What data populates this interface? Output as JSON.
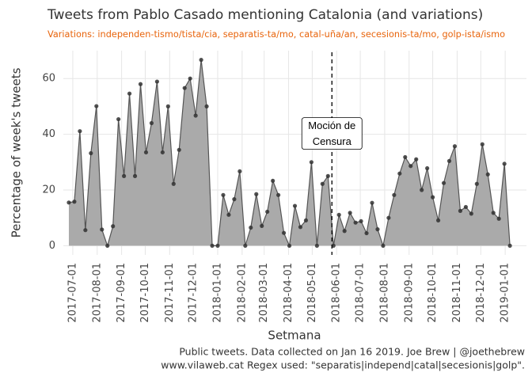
{
  "chart_data": {
    "type": "area",
    "title": "Tweets from Pablo Casado mentioning Catalonia (and variations)",
    "subtitle": "Variations: independen-tismo/tista/cia, separatis-ta/mo, catal-uña/an, secesionis-ta/mo, golp-ista/ismo",
    "x_label": "Setmana",
    "y_label": "Percentage of week's tweets",
    "caption": [
      "Public tweets. Data collected on Jan 16 2019. Joe Brew | @joethebrew",
      "www.vilaweb.cat Regex used: \"separatis|independ|catal|secesionis|golp\"."
    ],
    "x": [
      "2017-06-26",
      "2017-07-03",
      "2017-07-10",
      "2017-07-17",
      "2017-07-24",
      "2017-07-31",
      "2017-08-07",
      "2017-08-14",
      "2017-08-21",
      "2017-08-28",
      "2017-09-04",
      "2017-09-11",
      "2017-09-18",
      "2017-09-25",
      "2017-10-02",
      "2017-10-09",
      "2017-10-16",
      "2017-10-23",
      "2017-10-30",
      "2017-11-06",
      "2017-11-13",
      "2017-11-20",
      "2017-11-27",
      "2017-12-04",
      "2017-12-11",
      "2017-12-18",
      "2017-12-25",
      "2018-01-01",
      "2018-01-08",
      "2018-01-15",
      "2018-01-22",
      "2018-01-29",
      "2018-02-05",
      "2018-02-12",
      "2018-02-19",
      "2018-02-26",
      "2018-03-05",
      "2018-03-12",
      "2018-03-19",
      "2018-03-26",
      "2018-04-02",
      "2018-04-09",
      "2018-04-16",
      "2018-04-23",
      "2018-04-30",
      "2018-05-07",
      "2018-05-14",
      "2018-05-21",
      "2018-05-28",
      "2018-06-04",
      "2018-06-11",
      "2018-06-18",
      "2018-06-25",
      "2018-07-02",
      "2018-07-09",
      "2018-07-16",
      "2018-07-23",
      "2018-07-30",
      "2018-08-06",
      "2018-08-13",
      "2018-08-20",
      "2018-08-27",
      "2018-09-03",
      "2018-09-10",
      "2018-09-17",
      "2018-09-24",
      "2018-10-01",
      "2018-10-08",
      "2018-10-15",
      "2018-10-22",
      "2018-10-29",
      "2018-11-05",
      "2018-11-12",
      "2018-11-19",
      "2018-11-26",
      "2018-12-03",
      "2018-12-10",
      "2018-12-17",
      "2018-12-24",
      "2018-12-31",
      "2019-01-07"
    ],
    "values": [
      15.5,
      15.8,
      41.1,
      5.6,
      33.2,
      50.1,
      5.8,
      0,
      7.0,
      45.4,
      25.0,
      54.6,
      25.0,
      58.0,
      33.5,
      44.0,
      58.9,
      33.5,
      50.0,
      22.2,
      34.4,
      56.6,
      60.0,
      46.7,
      66.7,
      50.0,
      0,
      0,
      18.2,
      11.1,
      16.7,
      26.7,
      0,
      6.5,
      18.5,
      7.1,
      12.2,
      23.3,
      18.2,
      4.6,
      0,
      14.3,
      6.7,
      9.1,
      30.0,
      0,
      22.2,
      25.0,
      0,
      11.1,
      5.3,
      11.8,
      8.3,
      8.8,
      4.5,
      15.4,
      5.9,
      0,
      10.0,
      18.2,
      25.9,
      31.8,
      28.6,
      31.0,
      20.0,
      27.8,
      17.4,
      9.1,
      22.5,
      30.4,
      35.7,
      12.5,
      13.9,
      11.5,
      22.2,
      36.4,
      25.6,
      11.8,
      9.7,
      29.4,
      0
    ],
    "fill_color": "#aaaaaa",
    "line_color": "#555555",
    "point_color": "#333333",
    "xlim": [
      "2017-06-19",
      "2019-01-28"
    ],
    "xticks": [
      "2017-07-01",
      "2017-08-01",
      "2017-09-01",
      "2017-10-01",
      "2017-11-01",
      "2017-12-01",
      "2018-01-01",
      "2018-02-01",
      "2018-03-01",
      "2018-04-01",
      "2018-05-01",
      "2018-06-01",
      "2018-07-01",
      "2018-08-01",
      "2018-09-01",
      "2018-10-01",
      "2018-11-01",
      "2018-12-01",
      "2019-01-01"
    ],
    "ylim": [
      -3.3,
      70
    ],
    "yticks": [
      0,
      20,
      40,
      60
    ],
    "grid": true,
    "annotation": {
      "x": "2018-05-26",
      "label": [
        "Moción de",
        "Censura"
      ],
      "y": 40
    }
  }
}
